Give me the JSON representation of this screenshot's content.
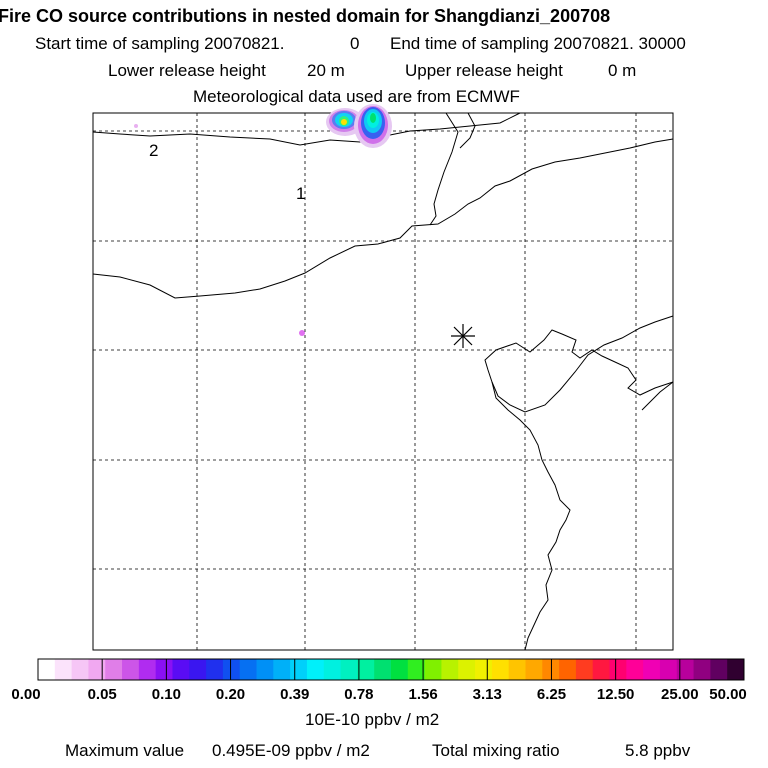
{
  "header": {
    "title": "Fire CO source contributions in nested domain for Shangdianzi_200708",
    "start_label": "Start time of sampling 20070821.",
    "start_time": "0",
    "end_label": "End time of sampling 20070821. 30000",
    "lower_label": "Lower release height",
    "lower_value": "20 m",
    "upper_label": "Upper release height",
    "upper_value": "0 m",
    "met_line": "Meteorological data used are from ECMWF"
  },
  "map": {
    "region_labels": [
      "1",
      "2"
    ],
    "receptor_marker": "asterisk",
    "grid": "dashed"
  },
  "colorbar": {
    "unit": "10E-10 ppbv / m2",
    "levels": [
      "0.00",
      "0.05",
      "0.10",
      "0.20",
      "0.39",
      "0.78",
      "1.56",
      "3.13",
      "6.25",
      "12.50",
      "25.00",
      "50.00"
    ],
    "colors": [
      "#ffffff",
      "#fbe3fb",
      "#f6c6f6",
      "#f1a8f1",
      "#e07ee8",
      "#cc55e8",
      "#b02cf0",
      "#8a10f4",
      "#5a0cf4",
      "#3a16f0",
      "#2030ee",
      "#1050f0",
      "#0670f2",
      "#0090f6",
      "#00b0f8",
      "#00d0fa",
      "#00f0fa",
      "#00f0e0",
      "#00f0c0",
      "#00f0a0",
      "#00e070",
      "#00e040",
      "#30ee20",
      "#80f000",
      "#b8f200",
      "#dcf200",
      "#f0f000",
      "#ffe000",
      "#ffc400",
      "#ffa800",
      "#ff8800",
      "#ff6400",
      "#ff3c20",
      "#ff1840",
      "#ff0070",
      "#ff0098",
      "#f000b4",
      "#d800b0",
      "#b8009c",
      "#900080",
      "#600060",
      "#300030"
    ]
  },
  "footer": {
    "max_label": "Maximum value",
    "max_value": "0.495E-09 ppbv / m2",
    "ratio_label": "Total mixing ratio",
    "ratio_value": "5.8 ppbv"
  },
  "chart_data": {
    "type": "heatmap",
    "title": "Fire CO source contributions in nested domain for Shangdianzi_200708",
    "colorbar_ticks": [
      0.0,
      0.05,
      0.1,
      0.2,
      0.39,
      0.78,
      1.56,
      3.13,
      6.25,
      12.5,
      25.0,
      50.0
    ],
    "colorbar_unit": "10E-10 ppbv / m2",
    "maximum_value": "0.495E-09 ppbv / m2",
    "total_mixing_ratio": "5.8 ppbv",
    "xlabel": "",
    "ylabel": ""
  }
}
